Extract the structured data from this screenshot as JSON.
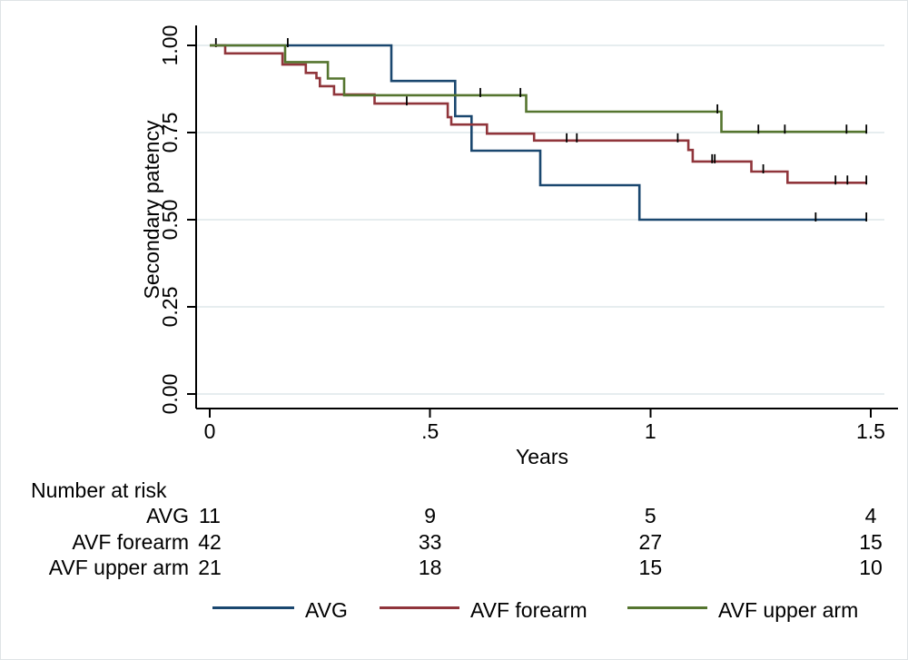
{
  "chart_data": {
    "type": "line",
    "subtype": "kaplan-meier-step",
    "title": "",
    "xlabel": "Years",
    "ylabel": "Secondary patency",
    "xlim": [
      0,
      1.5
    ],
    "ylim": [
      0.0,
      1.0
    ],
    "grid": "horizontal",
    "grid_color": "#E6EDEF",
    "axis_color": "#000000",
    "censor_tick_color": "#000000",
    "legend_position": "bottom",
    "xticks": [
      {
        "v": 0,
        "label": "0"
      },
      {
        "v": 0.5,
        "label": ".5"
      },
      {
        "v": 1,
        "label": "1"
      },
      {
        "v": 1.5,
        "label": "1.5"
      }
    ],
    "yticks": [
      {
        "v": 1.0,
        "label": "1.00"
      },
      {
        "v": 0.75,
        "label": "0.75"
      },
      {
        "v": 0.5,
        "label": "0.50"
      },
      {
        "v": 0.25,
        "label": "0.25"
      },
      {
        "v": 0.0,
        "label": "0.00"
      }
    ],
    "series": [
      {
        "name": "AVG",
        "color": "#1A476F",
        "steps": [
          [
            0,
            1.0
          ],
          [
            0.412,
            0.898
          ],
          [
            0.557,
            0.797
          ],
          [
            0.594,
            0.698
          ],
          [
            0.75,
            0.599
          ],
          [
            0.975,
            0.5
          ]
        ],
        "end_x": 1.49,
        "censors": [
          [
            0.014,
            1.0
          ],
          [
            0.177,
            1.0
          ],
          [
            1.375,
            0.5
          ],
          [
            1.49,
            0.5
          ]
        ]
      },
      {
        "name": "AVF forearm",
        "color": "#90353B",
        "steps": [
          [
            0,
            1.0
          ],
          [
            0.035,
            0.977
          ],
          [
            0.165,
            0.945
          ],
          [
            0.218,
            0.921
          ],
          [
            0.242,
            0.906
          ],
          [
            0.25,
            0.883
          ],
          [
            0.282,
            0.859
          ],
          [
            0.374,
            0.833
          ],
          [
            0.54,
            0.794
          ],
          [
            0.548,
            0.773
          ],
          [
            0.629,
            0.747
          ],
          [
            0.736,
            0.727
          ],
          [
            1.086,
            0.7
          ],
          [
            1.096,
            0.667
          ],
          [
            1.229,
            0.638
          ],
          [
            1.311,
            0.606
          ]
        ],
        "end_x": 1.49,
        "censors": [
          [
            0.447,
            0.833
          ],
          [
            0.81,
            0.727
          ],
          [
            0.833,
            0.727
          ],
          [
            1.062,
            0.727
          ],
          [
            1.14,
            0.667
          ],
          [
            1.146,
            0.667
          ],
          [
            1.256,
            0.638
          ],
          [
            1.42,
            0.606
          ],
          [
            1.447,
            0.606
          ],
          [
            1.49,
            0.606
          ]
        ]
      },
      {
        "name": "AVF upper arm",
        "color": "#55752F",
        "steps": [
          [
            0,
            1.0
          ],
          [
            0.171,
            0.952
          ],
          [
            0.268,
            0.905
          ],
          [
            0.305,
            0.857
          ],
          [
            0.718,
            0.81
          ],
          [
            1.161,
            0.752
          ]
        ],
        "end_x": 1.49,
        "censors": [
          [
            0.614,
            0.857
          ],
          [
            0.705,
            0.857
          ],
          [
            1.152,
            0.81
          ],
          [
            1.245,
            0.752
          ],
          [
            1.305,
            0.752
          ],
          [
            1.445,
            0.752
          ],
          [
            1.49,
            0.752
          ]
        ]
      }
    ],
    "risk_table": {
      "header": "Number at risk",
      "times": [
        0,
        0.5,
        1,
        1.5
      ],
      "rows": [
        {
          "label": "AVG",
          "counts": [
            11,
            9,
            5,
            4
          ]
        },
        {
          "label": "AVF forearm",
          "counts": [
            42,
            33,
            27,
            15
          ]
        },
        {
          "label": "AVF upper arm",
          "counts": [
            21,
            18,
            15,
            10
          ]
        }
      ]
    }
  }
}
